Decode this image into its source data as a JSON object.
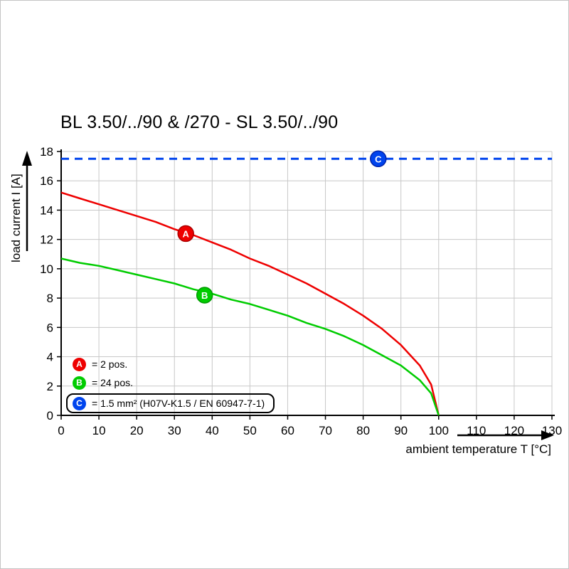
{
  "title": "BL 3.50/../90 & /270 - SL 3.50/../90",
  "axes": {
    "x_label": "ambient temperature T [°C]",
    "y_label": "load current I [A]"
  },
  "legend": {
    "items": [
      {
        "letter": "A",
        "color": "#ee0000",
        "label": "= 2 pos."
      },
      {
        "letter": "B",
        "color": "#00cc00",
        "label": "= 24 pos."
      },
      {
        "letter": "C",
        "color": "#0044ee",
        "label": "= 1.5 mm² (H07V-K1.5 / EN 60947-7-1)",
        "boxed": true
      }
    ]
  },
  "chart_data": {
    "type": "line",
    "title": "BL 3.50/../90 & /270 - SL 3.50/../90",
    "xlabel": "ambient temperature T [°C]",
    "ylabel": "load current I [A]",
    "xlim": [
      0,
      130
    ],
    "ylim": [
      0,
      18
    ],
    "xticks": [
      0,
      10,
      20,
      30,
      40,
      50,
      60,
      70,
      80,
      90,
      100,
      110,
      120,
      130
    ],
    "yticks": [
      0,
      2,
      4,
      6,
      8,
      10,
      12,
      14,
      16,
      18
    ],
    "grid": true,
    "grid_color": "#c8c8c8",
    "series": [
      {
        "id": "A",
        "name": "A = 2 pos.",
        "color": "#ee0000",
        "edge": "#aa0000",
        "width": 2.5,
        "dash": false,
        "marker": {
          "letter": "A",
          "x": 33,
          "y": 12.4
        },
        "points": [
          [
            0,
            15.2
          ],
          [
            5,
            14.8
          ],
          [
            10,
            14.4
          ],
          [
            15,
            14.0
          ],
          [
            20,
            13.6
          ],
          [
            25,
            13.2
          ],
          [
            30,
            12.7
          ],
          [
            35,
            12.3
          ],
          [
            40,
            11.8
          ],
          [
            45,
            11.3
          ],
          [
            50,
            10.7
          ],
          [
            55,
            10.2
          ],
          [
            60,
            9.6
          ],
          [
            65,
            9.0
          ],
          [
            70,
            8.3
          ],
          [
            75,
            7.6
          ],
          [
            80,
            6.8
          ],
          [
            85,
            5.9
          ],
          [
            90,
            4.8
          ],
          [
            95,
            3.4
          ],
          [
            98,
            2.1
          ],
          [
            100,
            0
          ]
        ]
      },
      {
        "id": "B",
        "name": "B = 24 pos.",
        "color": "#00cc00",
        "edge": "#009900",
        "width": 2.5,
        "dash": false,
        "marker": {
          "letter": "B",
          "x": 38,
          "y": 8.2
        },
        "points": [
          [
            0,
            10.7
          ],
          [
            5,
            10.4
          ],
          [
            10,
            10.2
          ],
          [
            15,
            9.9
          ],
          [
            20,
            9.6
          ],
          [
            25,
            9.3
          ],
          [
            30,
            9.0
          ],
          [
            35,
            8.6
          ],
          [
            40,
            8.3
          ],
          [
            45,
            7.9
          ],
          [
            50,
            7.6
          ],
          [
            55,
            7.2
          ],
          [
            60,
            6.8
          ],
          [
            65,
            6.3
          ],
          [
            70,
            5.9
          ],
          [
            75,
            5.4
          ],
          [
            80,
            4.8
          ],
          [
            85,
            4.1
          ],
          [
            90,
            3.4
          ],
          [
            95,
            2.4
          ],
          [
            98,
            1.5
          ],
          [
            100,
            0
          ]
        ]
      },
      {
        "id": "C",
        "name": "C = 1.5 mm² (H07V-K1.5 / EN 60947-7-1)",
        "color": "#0044ee",
        "edge": "#0022aa",
        "width": 3,
        "dash": true,
        "marker": {
          "letter": "C",
          "x": 84,
          "y": 17.5
        },
        "points": [
          [
            0,
            17.5
          ],
          [
            130,
            17.5
          ]
        ]
      }
    ]
  }
}
